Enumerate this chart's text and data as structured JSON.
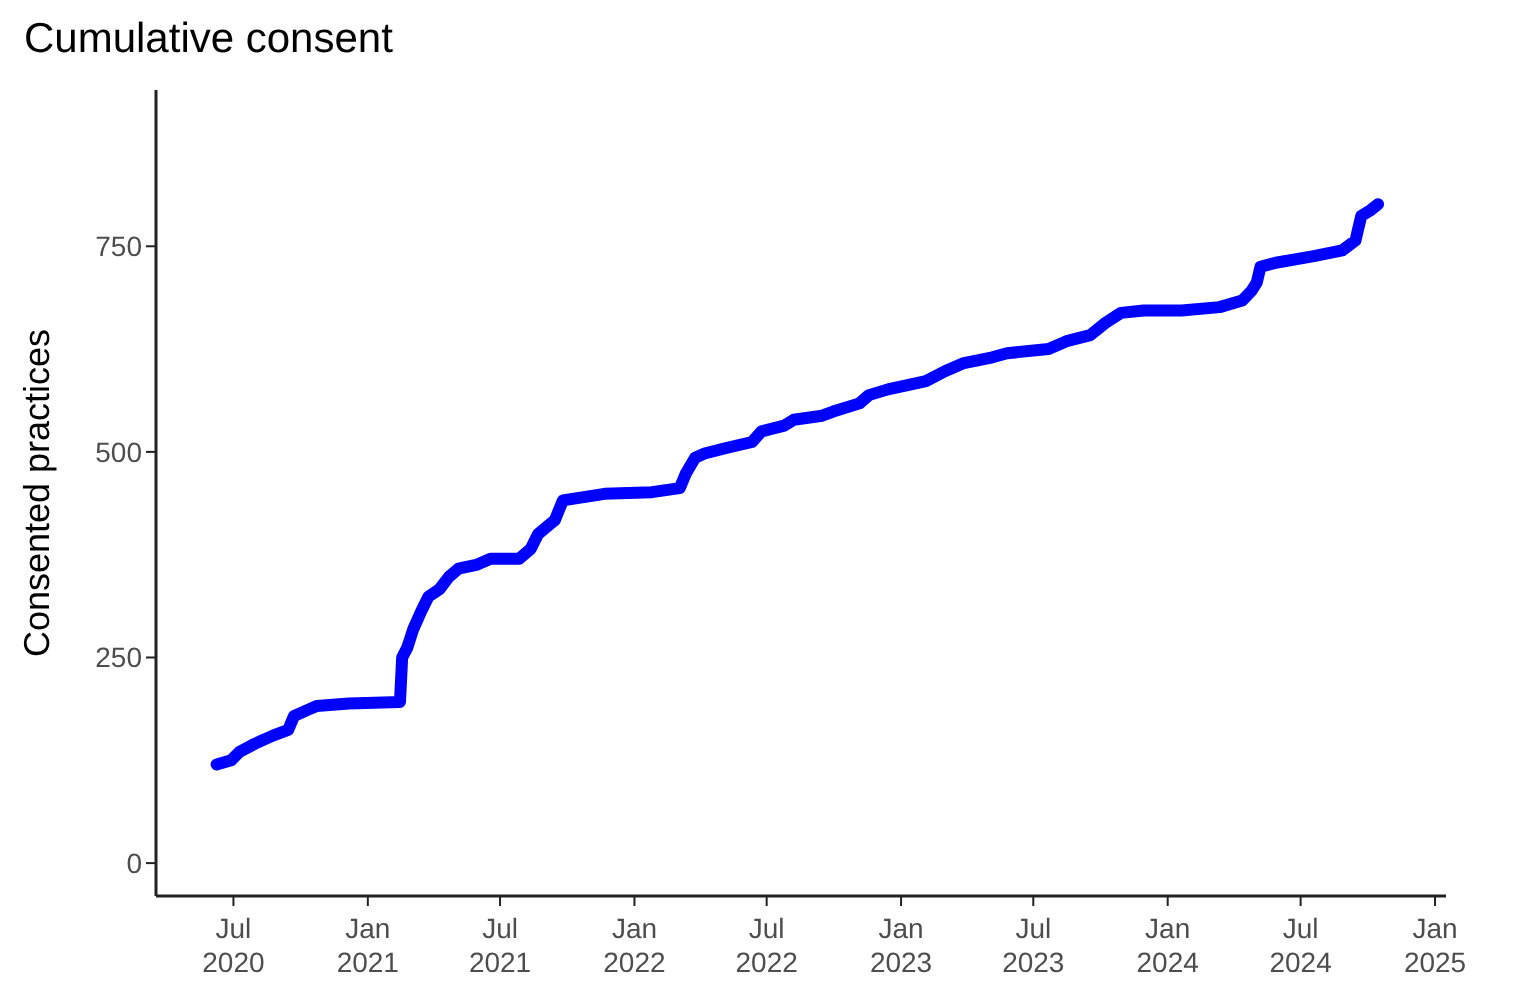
{
  "chart_data": {
    "type": "line",
    "title": "Cumulative consent",
    "ylabel": "Consented practices",
    "x": [
      "2020-06-08",
      "2020-06-28",
      "2020-07-09",
      "2020-07-30",
      "2020-08-24",
      "2020-09-14",
      "2020-09-22",
      "2020-10-10",
      "2020-10-23",
      "2020-12-06",
      "2021-02-14",
      "2021-02-17",
      "2021-02-24",
      "2021-03-04",
      "2021-03-15",
      "2021-03-25",
      "2021-04-09",
      "2021-04-22",
      "2021-05-05",
      "2021-05-31",
      "2021-06-18",
      "2021-07-27",
      "2021-08-12",
      "2021-08-22",
      "2021-09-14",
      "2021-09-25",
      "2021-11-21",
      "2022-01-25",
      "2022-03-04",
      "2022-03-12",
      "2022-03-25",
      "2022-04-07",
      "2022-05-08",
      "2022-06-11",
      "2022-06-24",
      "2022-07-25",
      "2022-08-07",
      "2022-09-15",
      "2022-09-30",
      "2022-11-05",
      "2022-11-18",
      "2022-12-14",
      "2023-02-04",
      "2023-03-02",
      "2023-03-28",
      "2023-05-06",
      "2023-05-26",
      "2023-07-22",
      "2023-08-17",
      "2023-09-17",
      "2023-10-08",
      "2023-10-29",
      "2023-11-29",
      "2024-01-20",
      "2024-03-12",
      "2024-04-12",
      "2024-04-25",
      "2024-05-02",
      "2024-05-07",
      "2024-05-28",
      "2024-07-19",
      "2024-08-27",
      "2024-09-14",
      "2024-09-22",
      "2024-10-05",
      "2024-10-15"
    ],
    "series": [
      {
        "color": "#0000ff",
        "values": [
          120,
          125,
          135,
          145,
          155,
          162,
          179,
          186,
          191,
          194,
          196,
          250,
          262,
          284,
          306,
          324,
          333,
          348,
          358,
          363,
          370,
          370,
          382,
          400,
          417,
          441,
          449,
          451,
          456,
          473,
          493,
          498,
          505,
          512,
          525,
          532,
          539,
          544,
          549,
          559,
          569,
          576,
          586,
          598,
          608,
          615,
          620,
          625,
          635,
          642,
          657,
          669,
          672,
          672,
          676,
          684,
          696,
          706,
          725,
          730,
          738,
          745,
          757,
          787,
          794,
          801
        ]
      }
    ],
    "xlim": [
      "2020-03-17",
      "2025-01-16"
    ],
    "xticks": [
      {
        "value": "2020-07-01",
        "label": "Jul 2020"
      },
      {
        "value": "2021-01-01",
        "label": "Jan 2021"
      },
      {
        "value": "2021-07-01",
        "label": "Jul 2021"
      },
      {
        "value": "2022-01-01",
        "label": "Jan 2022"
      },
      {
        "value": "2022-07-01",
        "label": "Jul 2022"
      },
      {
        "value": "2023-01-01",
        "label": "Jan 2023"
      },
      {
        "value": "2023-07-01",
        "label": "Jul 2023"
      },
      {
        "value": "2024-01-01",
        "label": "Jan 2024"
      },
      {
        "value": "2024-07-01",
        "label": "Jul 2024"
      },
      {
        "value": "2025-01-01",
        "label": "Jan 2025"
      }
    ],
    "ylim": [
      -40,
      940
    ],
    "yticks": [
      0,
      250,
      500,
      750
    ],
    "grid": false,
    "legend": false,
    "marker": "none",
    "line_style": "solid"
  }
}
